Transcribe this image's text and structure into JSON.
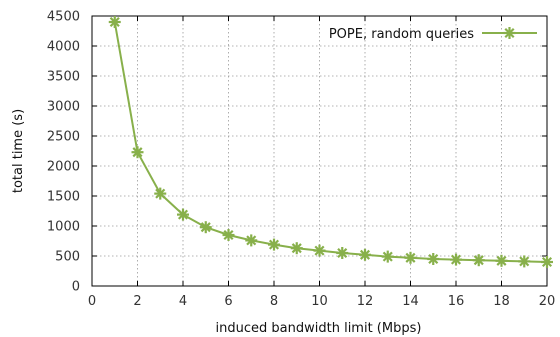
{
  "chart_data": {
    "type": "line",
    "xlabel": "induced bandwidth limit (Mbps)",
    "ylabel": "total time (s)",
    "xlim": [
      0,
      20
    ],
    "ylim": [
      0,
      4500
    ],
    "xticks": [
      "0",
      "2",
      "4",
      "6",
      "8",
      "10",
      "12",
      "14",
      "16",
      "18",
      "20"
    ],
    "yticks": [
      "0",
      "500",
      "1000",
      "1500",
      "2000",
      "2500",
      "3000",
      "3500",
      "4000",
      "4500"
    ],
    "grid": true,
    "legend_position": "top-right",
    "series": [
      {
        "name": "POPE, random queries",
        "color": "#88b04b",
        "marker": "asterisk",
        "x": [
          1,
          2,
          3,
          4,
          5,
          6,
          7,
          8,
          9,
          10,
          11,
          12,
          13,
          14,
          15,
          16,
          17,
          18,
          19,
          20
        ],
        "y": [
          4400,
          2230,
          1540,
          1190,
          980,
          850,
          760,
          690,
          630,
          590,
          550,
          520,
          490,
          470,
          450,
          440,
          430,
          420,
          410,
          400
        ]
      }
    ]
  }
}
